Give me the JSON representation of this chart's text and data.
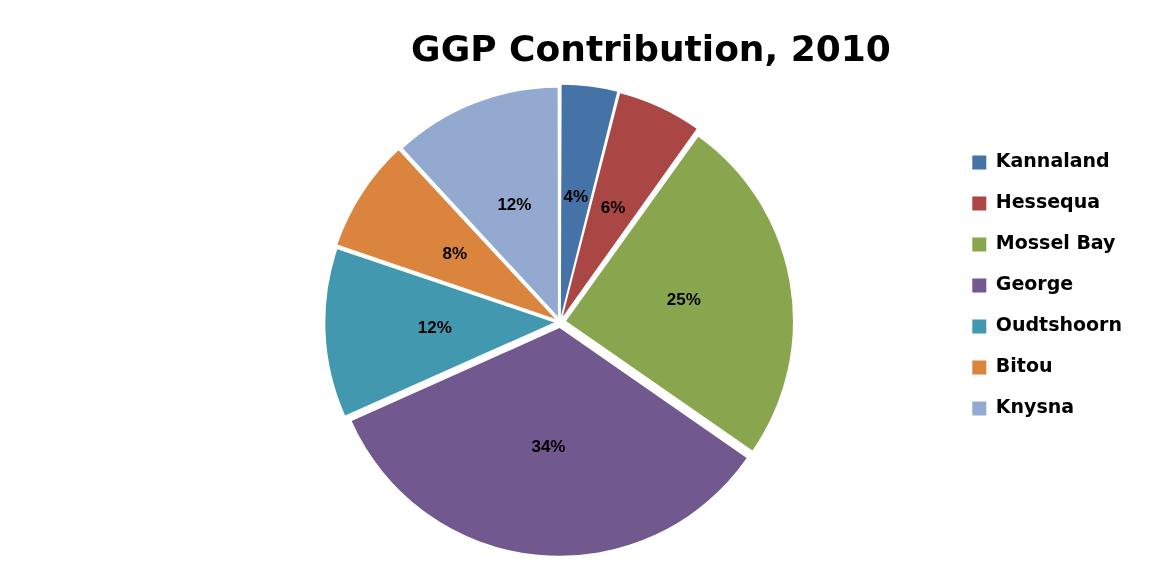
{
  "chart_data": {
    "type": "pie",
    "title": "GGP Contribution, 2010",
    "categories": [
      "Kannaland",
      "Hessequa",
      "Mossel Bay",
      "George",
      "Oudtshoorn",
      "Bitou",
      "Knysna"
    ],
    "values": [
      4,
      6,
      25,
      34,
      12,
      8,
      12
    ],
    "value_labels": [
      "4%",
      "6%",
      "25%",
      "34%",
      "12%",
      "8%",
      "12%"
    ],
    "colors": [
      "#4572a7",
      "#aa4643",
      "#89a54e",
      "#71588f",
      "#4198af",
      "#db843d",
      "#93a9cf"
    ],
    "legend": "right"
  }
}
